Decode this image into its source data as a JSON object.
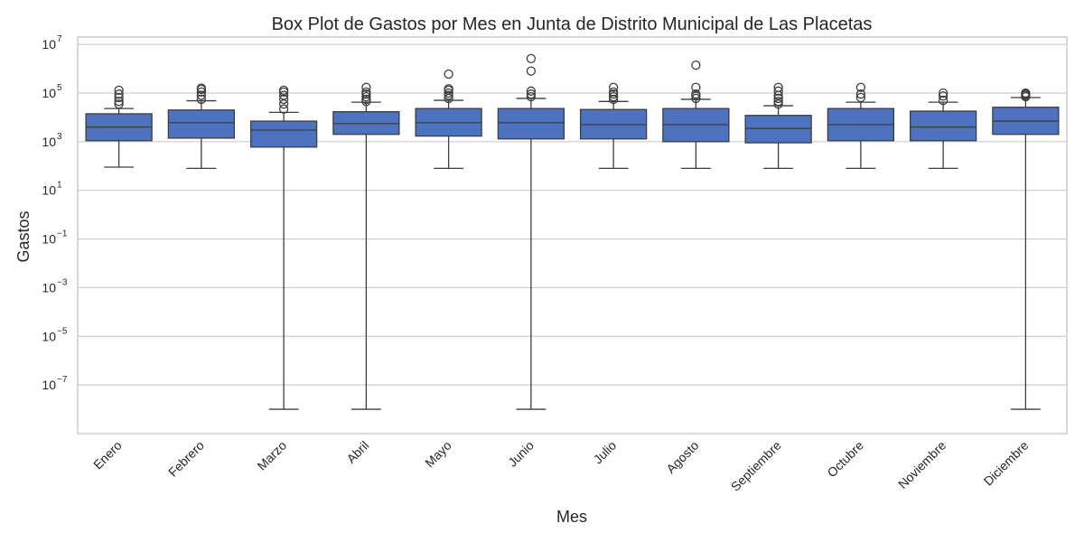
{
  "chart_data": {
    "type": "box",
    "title": "Box Plot de Gastos por Mes en Junta de Distrito Municipal de Las Placetas",
    "xlabel": "Mes",
    "ylabel": "Gastos",
    "yscale": "log",
    "ylim": [
      1e-09,
      20000000.0
    ],
    "yticks": [
      {
        "value": 10000000.0,
        "base": "10",
        "exp": "7"
      },
      {
        "value": 100000.0,
        "base": "10",
        "exp": "5"
      },
      {
        "value": 1000.0,
        "base": "10",
        "exp": "3"
      },
      {
        "value": 10.0,
        "base": "10",
        "exp": "1"
      },
      {
        "value": 0.1,
        "base": "10",
        "exp": "−1"
      },
      {
        "value": 0.001,
        "base": "10",
        "exp": "−3"
      },
      {
        "value": 1e-05,
        "base": "10",
        "exp": "−5"
      },
      {
        "value": 1e-07,
        "base": "10",
        "exp": "−7"
      }
    ],
    "grid": true,
    "box_color": "#4c72c0",
    "categories": [
      "Enero",
      "Febrero",
      "Marzo",
      "Abril",
      "Mayo",
      "Junio",
      "Julio",
      "Agosto",
      "Septiembre",
      "Octubre",
      "Noviembre",
      "Diciembre"
    ],
    "boxes": [
      {
        "whislo": 90,
        "q1": 1100,
        "med": 4000,
        "q3": 14000,
        "whishi": 23000,
        "fliers": [
          35000,
          45000,
          65000,
          90000,
          130000
        ]
      },
      {
        "whislo": 80,
        "q1": 1400,
        "med": 6000,
        "q3": 20000,
        "whishi": 48000,
        "fliers": [
          55000,
          80000,
          110000,
          140000,
          160000
        ]
      },
      {
        "whislo": 1e-08,
        "q1": 600,
        "med": 3000,
        "q3": 7000,
        "whishi": 16000,
        "fliers": [
          22000,
          35000,
          55000,
          80000,
          110000,
          130000
        ]
      },
      {
        "whislo": 1e-08,
        "q1": 2000,
        "med": 5500,
        "q3": 17000,
        "whishi": 42000,
        "fliers": [
          45000,
          55000,
          70000,
          90000,
          110000,
          170000
        ]
      },
      {
        "whislo": 80,
        "q1": 1700,
        "med": 6000,
        "q3": 23000,
        "whishi": 50000,
        "fliers": [
          60000,
          80000,
          100000,
          130000,
          150000,
          600000
        ]
      },
      {
        "whislo": 1e-08,
        "q1": 1300,
        "med": 6000,
        "q3": 23000,
        "whishi": 60000,
        "fliers": [
          70000,
          90000,
          120000,
          800000,
          2600000
        ]
      },
      {
        "whislo": 80,
        "q1": 1300,
        "med": 5000,
        "q3": 21000,
        "whishi": 45000,
        "fliers": [
          55000,
          70000,
          90000,
          110000,
          170000
        ]
      },
      {
        "whislo": 80,
        "q1": 1000,
        "med": 5000,
        "q3": 23000,
        "whishi": 55000,
        "fliers": [
          60000,
          75000,
          90000,
          170000,
          1400000
        ]
      },
      {
        "whislo": 80,
        "q1": 900,
        "med": 3500,
        "q3": 12000,
        "whishi": 30000,
        "fliers": [
          35000,
          45000,
          60000,
          80000,
          120000,
          170000
        ]
      },
      {
        "whislo": 80,
        "q1": 1100,
        "med": 5000,
        "q3": 23000,
        "whishi": 42000,
        "fliers": [
          65000,
          90000,
          170000
        ]
      },
      {
        "whislo": 80,
        "q1": 1100,
        "med": 4000,
        "q3": 18000,
        "whishi": 42000,
        "fliers": [
          50000,
          75000,
          100000
        ]
      },
      {
        "whislo": 1e-08,
        "q1": 2000,
        "med": 7000,
        "q3": 26000,
        "whishi": 65000,
        "fliers": [
          70000,
          80000,
          90000,
          100000
        ]
      }
    ]
  }
}
